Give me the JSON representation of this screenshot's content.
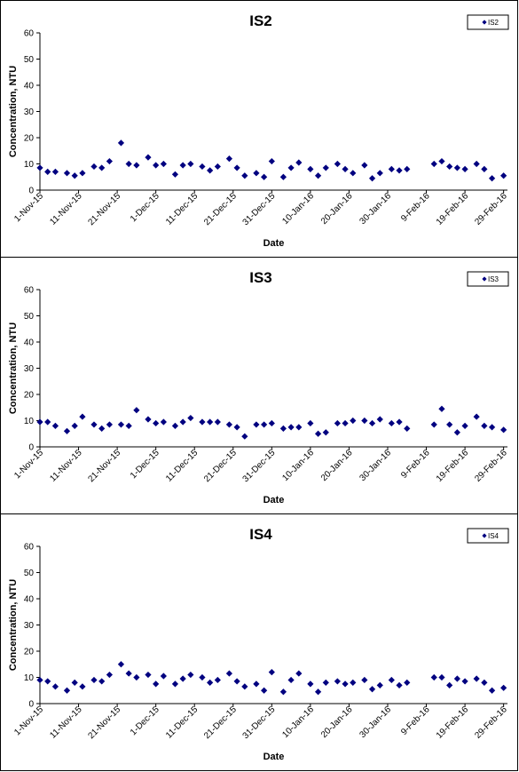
{
  "chart_data": [
    {
      "type": "scatter",
      "title": "IS2",
      "xlabel": "Date",
      "ylabel": "Concentration, NTU",
      "ylim": [
        0,
        60
      ],
      "yticks": [
        "0",
        "10",
        "20",
        "30",
        "40",
        "50",
        "60"
      ],
      "xlim": [
        "2015-11-01",
        "2016-03-01"
      ],
      "xticks": [
        "1-Nov-15",
        "11-Nov-15",
        "21-Nov-15",
        "1-Dec-15",
        "11-Dec-15",
        "21-Dec-15",
        "31-Dec-15",
        "10-Jan-16",
        "20-Jan-16",
        "30-Jan-16",
        "9-Feb-16",
        "19-Feb-16",
        "29-Feb-16"
      ],
      "grid": false,
      "legend_position": "top-right",
      "series": [
        {
          "name": "IS2",
          "color": "#000080",
          "x": [
            "2015-11-01",
            "2015-11-03",
            "2015-11-05",
            "2015-11-08",
            "2015-11-10",
            "2015-11-12",
            "2015-11-15",
            "2015-11-17",
            "2015-11-19",
            "2015-11-22",
            "2015-11-24",
            "2015-11-26",
            "2015-11-29",
            "2015-12-01",
            "2015-12-03",
            "2015-12-06",
            "2015-12-08",
            "2015-12-10",
            "2015-12-13",
            "2015-12-15",
            "2015-12-17",
            "2015-12-20",
            "2015-12-22",
            "2015-12-24",
            "2015-12-27",
            "2015-12-29",
            "2015-12-31",
            "2016-01-03",
            "2016-01-05",
            "2016-01-07",
            "2016-01-10",
            "2016-01-12",
            "2016-01-14",
            "2016-01-17",
            "2016-01-19",
            "2016-01-21",
            "2016-01-24",
            "2016-01-26",
            "2016-01-28",
            "2016-01-31",
            "2016-02-02",
            "2016-02-04",
            "2016-02-11",
            "2016-02-13",
            "2016-02-15",
            "2016-02-17",
            "2016-02-19",
            "2016-02-22",
            "2016-02-24",
            "2016-02-26",
            "2016-02-29"
          ],
          "y": [
            8.5,
            7.0,
            7.0,
            6.5,
            5.5,
            6.5,
            9.0,
            8.5,
            11.0,
            18.0,
            10.0,
            9.5,
            12.5,
            9.5,
            10.0,
            6.0,
            9.5,
            10.0,
            9.0,
            7.5,
            9.0,
            12.0,
            8.5,
            5.5,
            6.5,
            5.0,
            11.0,
            5.0,
            8.5,
            10.5,
            8.0,
            5.5,
            8.5,
            10.0,
            8.0,
            6.5,
            9.5,
            4.5,
            6.5,
            8.0,
            7.5,
            8.0,
            10.0,
            11.0,
            9.0,
            8.5,
            8.0,
            10.0,
            8.0,
            4.5,
            5.5
          ]
        }
      ]
    },
    {
      "type": "scatter",
      "title": "IS3",
      "xlabel": "Date",
      "ylabel": "Concentration, NTU",
      "ylim": [
        0,
        60
      ],
      "yticks": [
        "0",
        "10",
        "20",
        "30",
        "40",
        "50",
        "60"
      ],
      "xlim": [
        "2015-11-01",
        "2016-03-01"
      ],
      "xticks": [
        "1-Nov-15",
        "11-Nov-15",
        "21-Nov-15",
        "1-Dec-15",
        "11-Dec-15",
        "21-Dec-15",
        "31-Dec-15",
        "10-Jan-16",
        "20-Jan-16",
        "30-Jan-16",
        "9-Feb-16",
        "19-Feb-16",
        "29-Feb-16"
      ],
      "grid": false,
      "legend_position": "top-right",
      "series": [
        {
          "name": "IS3",
          "color": "#000080",
          "x": [
            "2015-11-01",
            "2015-11-03",
            "2015-11-05",
            "2015-11-08",
            "2015-11-10",
            "2015-11-12",
            "2015-11-15",
            "2015-11-17",
            "2015-11-19",
            "2015-11-22",
            "2015-11-24",
            "2015-11-26",
            "2015-11-29",
            "2015-12-01",
            "2015-12-03",
            "2015-12-06",
            "2015-12-08",
            "2015-12-10",
            "2015-12-13",
            "2015-12-15",
            "2015-12-17",
            "2015-12-20",
            "2015-12-22",
            "2015-12-24",
            "2015-12-27",
            "2015-12-29",
            "2015-12-31",
            "2016-01-03",
            "2016-01-05",
            "2016-01-07",
            "2016-01-10",
            "2016-01-12",
            "2016-01-14",
            "2016-01-17",
            "2016-01-19",
            "2016-01-21",
            "2016-01-24",
            "2016-01-26",
            "2016-01-28",
            "2016-01-31",
            "2016-02-02",
            "2016-02-04",
            "2016-02-11",
            "2016-02-13",
            "2016-02-15",
            "2016-02-17",
            "2016-02-19",
            "2016-02-22",
            "2016-02-24",
            "2016-02-26",
            "2016-02-29"
          ],
          "y": [
            9.5,
            9.5,
            8.0,
            6.0,
            8.0,
            11.5,
            8.5,
            7.0,
            8.5,
            8.5,
            8.0,
            14.0,
            10.5,
            9.0,
            9.5,
            8.0,
            9.5,
            11.0,
            9.5,
            9.5,
            9.5,
            8.5,
            7.5,
            4.0,
            8.5,
            8.5,
            9.0,
            7.0,
            7.5,
            7.5,
            9.0,
            5.0,
            5.5,
            9.0,
            9.0,
            10.0,
            10.0,
            9.0,
            10.5,
            9.0,
            9.5,
            7.0,
            8.5,
            14.5,
            8.5,
            5.5,
            8.0,
            11.5,
            8.0,
            7.5,
            6.5
          ]
        }
      ]
    },
    {
      "type": "scatter",
      "title": "IS4",
      "xlabel": "Date",
      "ylabel": "Concentration, NTU",
      "ylim": [
        0,
        60
      ],
      "yticks": [
        "0",
        "10",
        "20",
        "30",
        "40",
        "50",
        "60"
      ],
      "xlim": [
        "2015-11-01",
        "2016-03-01"
      ],
      "xticks": [
        "1-Nov-15",
        "11-Nov-15",
        "21-Nov-15",
        "1-Dec-15",
        "11-Dec-15",
        "21-Dec-15",
        "31-Dec-15",
        "10-Jan-16",
        "20-Jan-16",
        "30-Jan-16",
        "9-Feb-16",
        "19-Feb-16",
        "29-Feb-16"
      ],
      "grid": false,
      "legend_position": "top-right",
      "series": [
        {
          "name": "IS4",
          "color": "#000080",
          "x": [
            "2015-11-01",
            "2015-11-03",
            "2015-11-05",
            "2015-11-08",
            "2015-11-10",
            "2015-11-12",
            "2015-11-15",
            "2015-11-17",
            "2015-11-19",
            "2015-11-22",
            "2015-11-24",
            "2015-11-26",
            "2015-11-29",
            "2015-12-01",
            "2015-12-03",
            "2015-12-06",
            "2015-12-08",
            "2015-12-10",
            "2015-12-13",
            "2015-12-15",
            "2015-12-17",
            "2015-12-20",
            "2015-12-22",
            "2015-12-24",
            "2015-12-27",
            "2015-12-29",
            "2015-12-31",
            "2016-01-03",
            "2016-01-05",
            "2016-01-07",
            "2016-01-10",
            "2016-01-12",
            "2016-01-14",
            "2016-01-17",
            "2016-01-19",
            "2016-01-21",
            "2016-01-24",
            "2016-01-26",
            "2016-01-28",
            "2016-01-31",
            "2016-02-02",
            "2016-02-04",
            "2016-02-11",
            "2016-02-13",
            "2016-02-15",
            "2016-02-17",
            "2016-02-19",
            "2016-02-22",
            "2016-02-24",
            "2016-02-26",
            "2016-02-29"
          ],
          "y": [
            9.0,
            8.5,
            6.5,
            5.0,
            8.0,
            6.5,
            9.0,
            8.5,
            11.0,
            15.0,
            11.5,
            10.0,
            11.0,
            7.5,
            10.5,
            7.5,
            9.5,
            11.0,
            10.0,
            8.0,
            9.0,
            11.5,
            8.5,
            6.5,
            7.5,
            5.0,
            12.0,
            4.5,
            9.0,
            11.5,
            7.5,
            4.5,
            8.0,
            8.5,
            7.5,
            8.0,
            9.0,
            5.5,
            7.0,
            9.0,
            7.0,
            8.0,
            10.0,
            10.0,
            7.0,
            9.5,
            8.5,
            9.5,
            8.0,
            5.0,
            6.0
          ]
        }
      ]
    }
  ]
}
